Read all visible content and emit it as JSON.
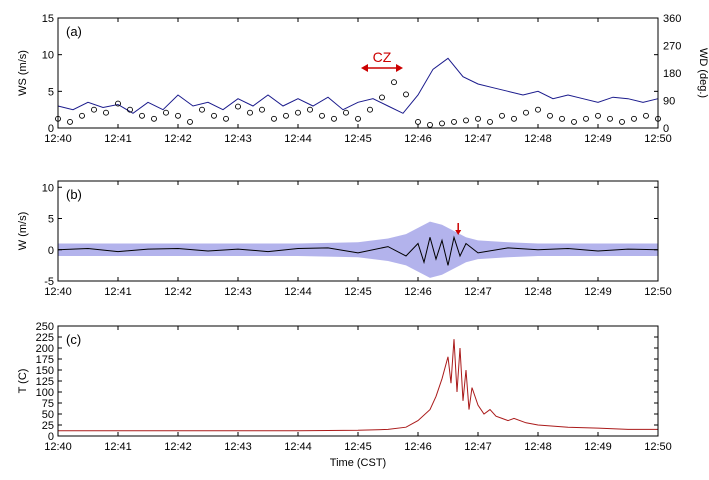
{
  "chart_data": [
    {
      "type": "line",
      "panel_label": "(a)",
      "ylabel": "WS (m/s)",
      "ylim": [
        0,
        15
      ],
      "yticks": [
        "0",
        "5",
        "10",
        "15"
      ],
      "y2label": "WD (deg.)",
      "y2lim": [
        0,
        360
      ],
      "y2ticks": [
        "0",
        "90",
        "180",
        "270",
        "360"
      ],
      "xticks": [
        "12:40",
        "12:41",
        "12:42",
        "12:43",
        "12:44",
        "12:45",
        "12:46",
        "12:47",
        "12:48",
        "12:49",
        "12:50"
      ],
      "xlim_min": [
        0,
        10
      ],
      "annotation": {
        "text": "CZ",
        "x_start_min": 5.05,
        "x_end_min": 5.75,
        "color": "#cc0000"
      },
      "series": [
        {
          "color": "#1a1a8c",
          "style": "line",
          "axis": "left",
          "x_min": [
            0,
            0.25,
            0.5,
            0.75,
            1,
            1.25,
            1.5,
            1.75,
            2,
            2.25,
            2.5,
            2.75,
            3,
            3.25,
            3.5,
            3.75,
            4,
            4.25,
            4.5,
            4.75,
            5,
            5.25,
            5.5,
            5.75,
            6,
            6.25,
            6.5,
            6.75,
            7,
            7.25,
            7.5,
            7.75,
            8,
            8.25,
            8.5,
            8.75,
            9,
            9.25,
            9.5,
            9.75,
            10
          ],
          "values": [
            3,
            2.5,
            3.5,
            2.8,
            3.2,
            2,
            3.5,
            2.5,
            4.5,
            3,
            3.5,
            2.5,
            4,
            3,
            4.5,
            3,
            4,
            3,
            4.2,
            2.5,
            3.5,
            4,
            3,
            2,
            4.5,
            8,
            9.5,
            7,
            6,
            5.5,
            5,
            4.5,
            5,
            4,
            4.5,
            4,
            3.5,
            4.2,
            4,
            3.5,
            4
          ]
        },
        {
          "color": "#000000",
          "style": "markers",
          "axis": "right",
          "marker": "circle",
          "x_min": [
            0,
            0.2,
            0.4,
            0.6,
            0.8,
            1,
            1.2,
            1.4,
            1.6,
            1.8,
            2,
            2.2,
            2.4,
            2.6,
            2.8,
            3,
            3.2,
            3.4,
            3.6,
            3.8,
            4,
            4.2,
            4.4,
            4.6,
            4.8,
            5,
            5.2,
            5.4,
            5.6,
            5.8,
            6,
            6.2,
            6.4,
            6.6,
            6.8,
            7,
            7.2,
            7.4,
            7.6,
            7.8,
            8,
            8.2,
            8.4,
            8.6,
            8.8,
            9,
            9.2,
            9.4,
            9.6,
            9.8,
            10
          ],
          "values": [
            30,
            20,
            40,
            60,
            50,
            80,
            60,
            40,
            30,
            50,
            40,
            20,
            60,
            40,
            30,
            70,
            50,
            60,
            30,
            40,
            50,
            60,
            40,
            30,
            50,
            30,
            60,
            100,
            150,
            110,
            20,
            10,
            15,
            20,
            25,
            30,
            20,
            40,
            30,
            50,
            60,
            40,
            30,
            20,
            30,
            40,
            30,
            20,
            30,
            40,
            30
          ]
        }
      ]
    },
    {
      "type": "line",
      "panel_label": "(b)",
      "ylabel": "W (m/s)",
      "ylim": [
        -5,
        11
      ],
      "yticks": [
        "-5",
        "0",
        "5",
        "10"
      ],
      "xticks": [
        "12:40",
        "12:41",
        "12:42",
        "12:43",
        "12:44",
        "12:45",
        "12:46",
        "12:47",
        "12:48",
        "12:49",
        "12:50"
      ],
      "xlim_min": [
        0,
        10
      ],
      "annotation": {
        "type": "arrow",
        "x_min": 6.67,
        "color": "#cc0000"
      },
      "series": [
        {
          "color": "#9999e6",
          "style": "band",
          "x_min": [
            0,
            1,
            2,
            3,
            4,
            5,
            5.5,
            5.8,
            6,
            6.2,
            6.4,
            6.6,
            6.8,
            7,
            7.5,
            8,
            9,
            10
          ],
          "upper": [
            1,
            1,
            1,
            1,
            1,
            1.2,
            1.8,
            2.5,
            3.5,
            4.5,
            4,
            3,
            2,
            1.5,
            1.2,
            1,
            1,
            1
          ],
          "lower": [
            -1,
            -1,
            -1,
            -1,
            -1,
            -1.2,
            -1.8,
            -2.5,
            -3.5,
            -4.5,
            -4,
            -3,
            -2,
            -1.5,
            -1.2,
            -1,
            -1,
            -1
          ]
        },
        {
          "color": "#000000",
          "style": "line",
          "x_min": [
            0,
            0.5,
            1,
            1.5,
            2,
            2.5,
            3,
            3.5,
            4,
            4.5,
            5,
            5.5,
            5.8,
            6,
            6.1,
            6.2,
            6.3,
            6.4,
            6.5,
            6.6,
            6.7,
            6.8,
            7,
            7.5,
            8,
            8.5,
            9,
            9.5,
            10
          ],
          "values": [
            0,
            0.2,
            -0.3,
            0.1,
            0.2,
            -0.2,
            0.1,
            -0.3,
            0.2,
            0.3,
            -0.5,
            0.5,
            -1,
            1,
            -2,
            2,
            -1.5,
            1.5,
            -2.5,
            2,
            -1,
            1,
            -0.5,
            0.3,
            0,
            0.2,
            -0.2,
            0.1,
            0
          ]
        }
      ]
    },
    {
      "type": "line",
      "panel_label": "(c)",
      "ylabel": "T (C)",
      "ylim": [
        0,
        250
      ],
      "yticks": [
        "0",
        "25",
        "50",
        "75",
        "100",
        "125",
        "150",
        "175",
        "200",
        "225",
        "250"
      ],
      "xticks": [
        "12:40",
        "12:41",
        "12:42",
        "12:43",
        "12:44",
        "12:45",
        "12:46",
        "12:47",
        "12:48",
        "12:49",
        "12:50"
      ],
      "xlim_min": [
        0,
        10
      ],
      "xlabel": "Time (CST)",
      "series": [
        {
          "color": "#aa1a1a",
          "style": "line",
          "x_min": [
            0,
            1,
            2,
            3,
            4,
            5,
            5.5,
            5.8,
            6,
            6.2,
            6.3,
            6.4,
            6.5,
            6.55,
            6.6,
            6.65,
            6.7,
            6.75,
            6.8,
            6.85,
            6.9,
            7,
            7.1,
            7.2,
            7.3,
            7.4,
            7.5,
            7.6,
            7.8,
            8,
            8.5,
            9,
            9.5,
            10
          ],
          "values": [
            12,
            12,
            12,
            12,
            12,
            13,
            15,
            20,
            35,
            60,
            90,
            130,
            180,
            120,
            220,
            100,
            200,
            80,
            150,
            60,
            110,
            70,
            50,
            60,
            45,
            40,
            35,
            40,
            30,
            25,
            20,
            18,
            15,
            15
          ]
        }
      ]
    }
  ]
}
